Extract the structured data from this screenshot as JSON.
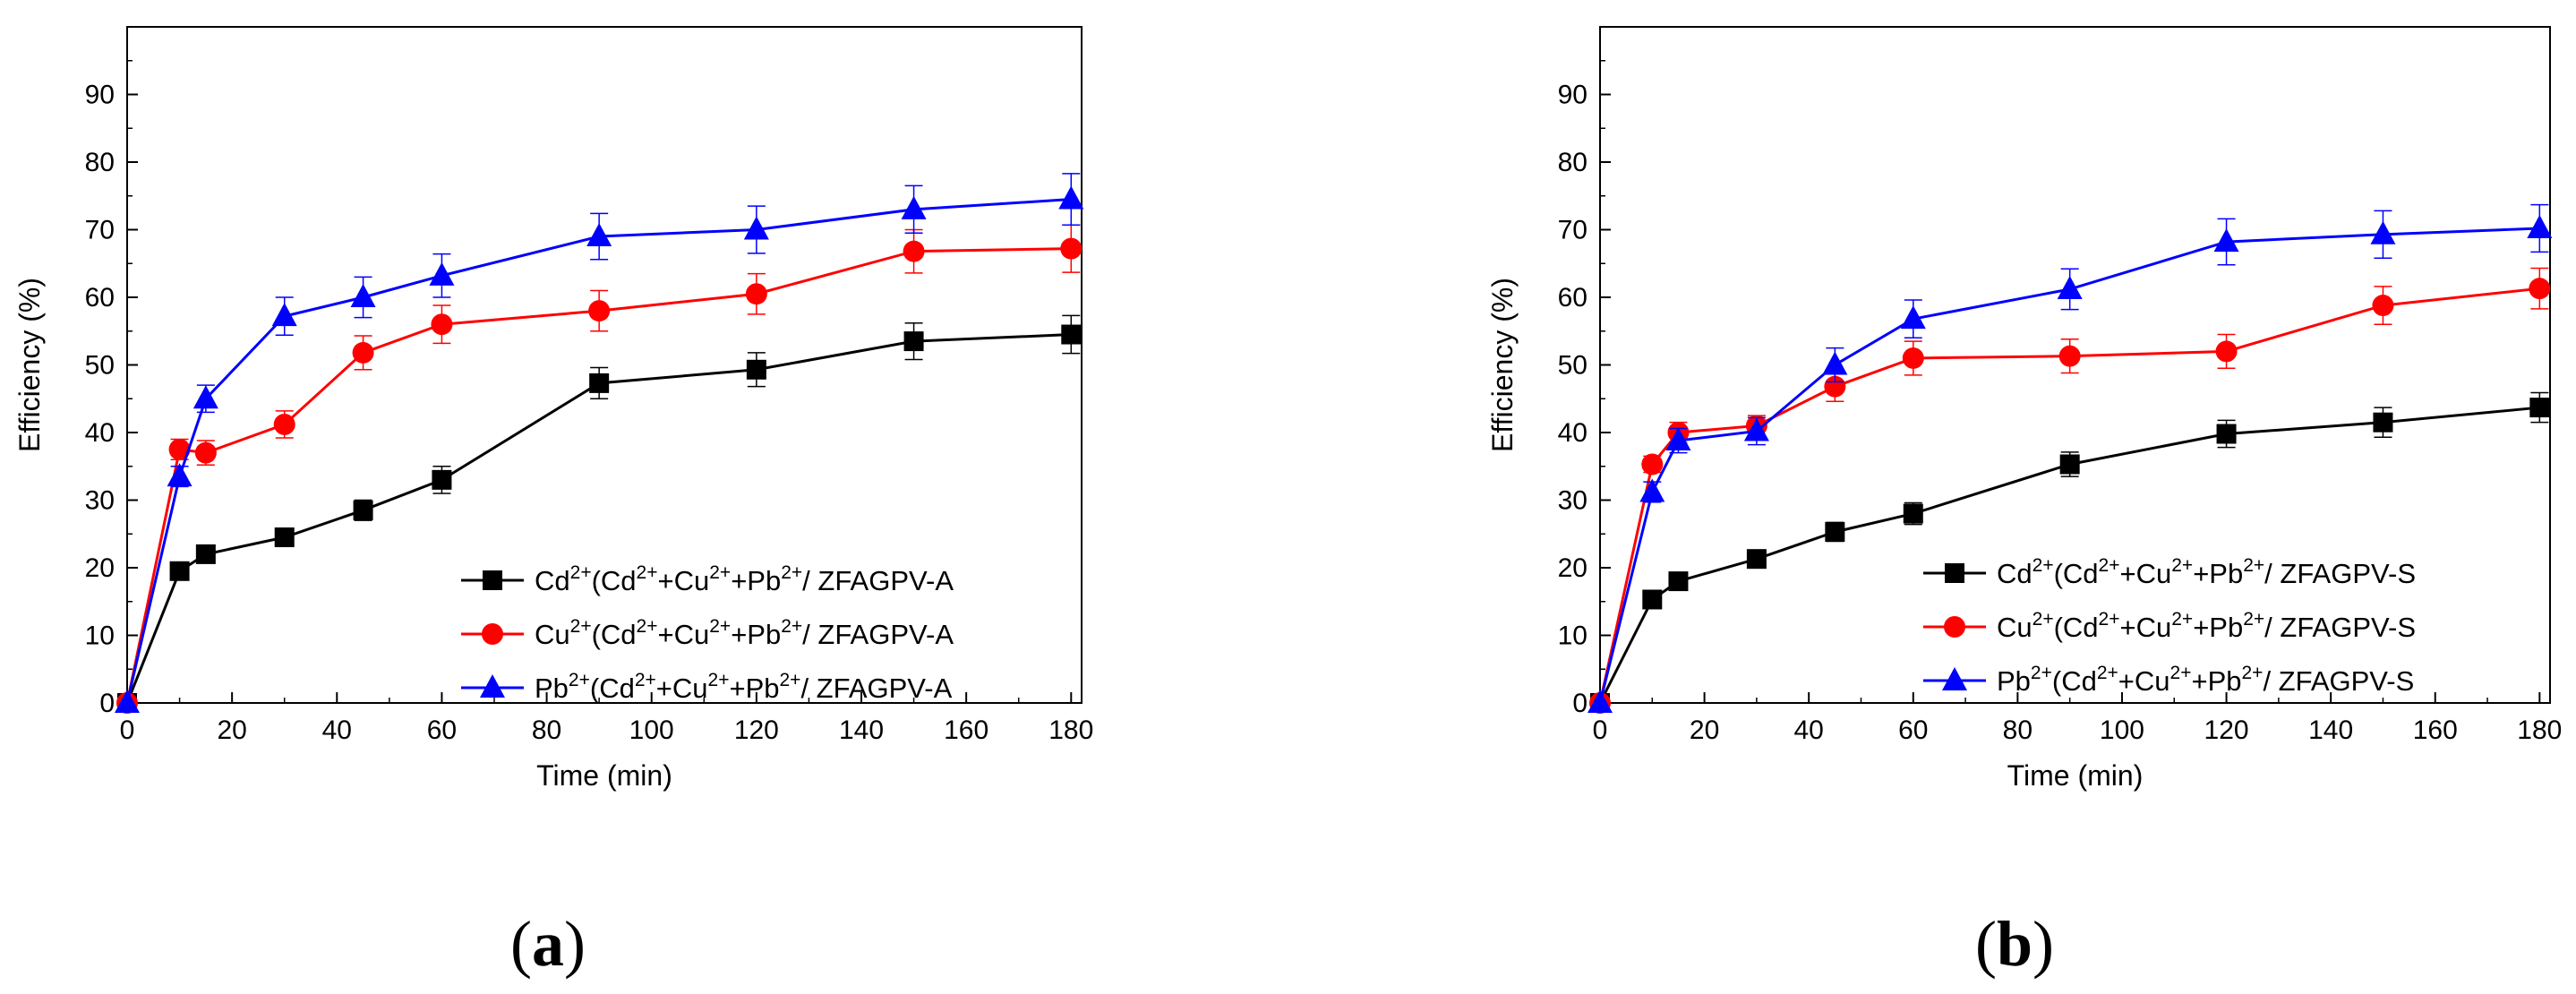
{
  "chart_data": [
    {
      "type": "line",
      "panel_label": "a",
      "xlabel": "Time (min)",
      "ylabel": "Efficiency (%)",
      "xlim": [
        0,
        182
      ],
      "ylim": [
        0,
        100
      ],
      "x_ticks": [
        0,
        20,
        40,
        60,
        80,
        100,
        120,
        140,
        160,
        180
      ],
      "y_ticks": [
        0,
        10,
        20,
        30,
        40,
        50,
        60,
        70,
        80,
        90
      ],
      "x": [
        0,
        10,
        15,
        30,
        45,
        60,
        90,
        120,
        150,
        180
      ],
      "legend_position": "bottom-right",
      "series": [
        {
          "ion": "Cd",
          "charge": "2+",
          "legend_mid": "(Cd",
          "legend_tail": "/ ZFAGPV-A",
          "color": "#000000",
          "marker": "square",
          "values": [
            0,
            19.5,
            22,
            24.5,
            28.5,
            33,
            47.3,
            49.3,
            53.5,
            54.5
          ],
          "errors": [
            0,
            1.0,
            1.0,
            1.2,
            1.5,
            2.0,
            2.3,
            2.5,
            2.7,
            2.8
          ]
        },
        {
          "ion": "Cu",
          "charge": "2+",
          "legend_mid": "(Cd",
          "legend_tail": "/ ZFAGPV-A",
          "color": "#ff0000",
          "marker": "circle",
          "values": [
            0,
            37.5,
            37,
            41.2,
            51.8,
            56,
            58,
            60.5,
            66.8,
            67.2
          ],
          "errors": [
            0,
            1.5,
            1.8,
            2.0,
            2.5,
            2.8,
            3.0,
            3.0,
            3.2,
            3.5
          ]
        },
        {
          "ion": "Pb",
          "charge": "2+",
          "legend_mid": "(Cd",
          "legend_tail": "/ ZFAGPV-A",
          "color": "#0000ff",
          "marker": "triangle",
          "values": [
            0,
            33.5,
            45,
            57.2,
            60,
            63.2,
            69,
            70,
            73,
            74.5
          ],
          "errors": [
            0,
            1.5,
            2.0,
            2.8,
            3.0,
            3.2,
            3.4,
            3.5,
            3.5,
            3.8
          ]
        }
      ]
    },
    {
      "type": "line",
      "panel_label": "b",
      "xlabel": "Time (min)",
      "ylabel": "Efficiency (%)",
      "xlim": [
        0,
        182
      ],
      "ylim": [
        0,
        100
      ],
      "x_ticks": [
        0,
        20,
        40,
        60,
        80,
        100,
        120,
        140,
        160,
        180
      ],
      "y_ticks": [
        0,
        10,
        20,
        30,
        40,
        50,
        60,
        70,
        80,
        90
      ],
      "x": [
        0,
        10,
        15,
        30,
        45,
        60,
        90,
        120,
        150,
        180
      ],
      "legend_position": "bottom-right",
      "series": [
        {
          "ion": "Cd",
          "charge": "2+",
          "legend_mid": "(Cd",
          "legend_tail": "/ ZFAGPV-S",
          "color": "#000000",
          "marker": "square",
          "values": [
            0,
            15.3,
            18,
            21.3,
            25.3,
            28,
            35.3,
            39.8,
            41.5,
            43.7
          ],
          "errors": [
            0,
            1.0,
            1.0,
            1.2,
            1.4,
            1.6,
            1.8,
            2.0,
            2.2,
            2.2
          ]
        },
        {
          "ion": "Cu",
          "charge": "2+",
          "legend_mid": "(Cd",
          "legend_tail": "/ ZFAGPV-S",
          "color": "#ff0000",
          "marker": "circle",
          "values": [
            0,
            35.3,
            40,
            41,
            46.8,
            51,
            51.3,
            52,
            58.8,
            61.3
          ],
          "errors": [
            0,
            1.2,
            1.5,
            1.5,
            2.2,
            2.5,
            2.5,
            2.5,
            2.8,
            3.0
          ]
        },
        {
          "ion": "Pb",
          "charge": "2+",
          "legend_mid": "(Cd",
          "legend_tail": "/ ZFAGPV-S",
          "color": "#0000ff",
          "marker": "triangle",
          "values": [
            0,
            31.2,
            38.8,
            40.2,
            50,
            56.8,
            61.2,
            68.2,
            69.3,
            70.2
          ],
          "errors": [
            0,
            1.5,
            1.8,
            2.0,
            2.5,
            2.8,
            3.0,
            3.4,
            3.5,
            3.5
          ]
        }
      ]
    }
  ]
}
